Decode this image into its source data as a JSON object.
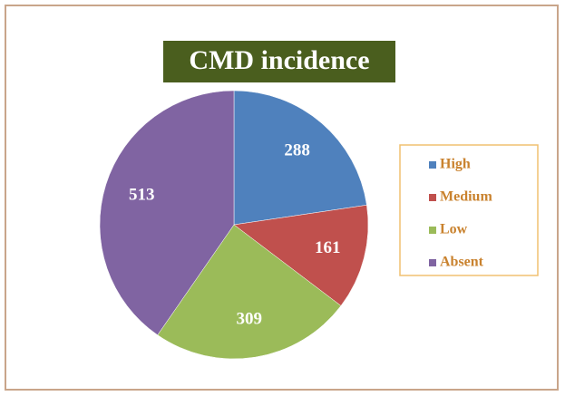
{
  "chart_data": {
    "type": "pie",
    "title": "CMD incidence",
    "categories": [
      "High",
      "Medium",
      "Low",
      "Absent"
    ],
    "values": [
      288,
      161,
      309,
      513
    ],
    "colors": [
      "#4f81bd",
      "#c0504d",
      "#9bbb59",
      "#8064a2"
    ],
    "legend": "right"
  }
}
